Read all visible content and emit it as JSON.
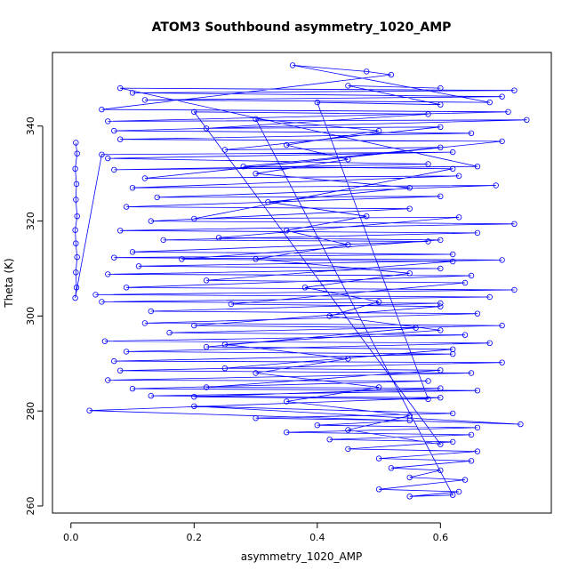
{
  "chart_data": {
    "type": "line",
    "title": "ATOM3 Southbound asymmetry_1020_AMP",
    "xlabel": "asymmetry_1020_AMP",
    "ylabel": "Theta (K)",
    "xlim": [
      -0.03,
      0.78
    ],
    "ylim": [
      258.5,
      355.5
    ],
    "xticks": [
      0.0,
      0.2,
      0.4,
      0.6
    ],
    "xtick_labels": [
      "0.0",
      "0.2",
      "0.4",
      "0.6"
    ],
    "yticks": [
      260,
      280,
      300,
      320,
      340
    ],
    "ytick_labels": [
      "260",
      "280",
      "300",
      "320",
      "340"
    ],
    "grid": false,
    "legend": "none",
    "marker": "open-circle",
    "series_color": "#0000ff",
    "series": [
      {
        "points": [
          [
            0.008,
            336.5
          ],
          [
            0.01,
            334.2
          ],
          [
            0.007,
            331.0
          ],
          [
            0.009,
            327.8
          ],
          [
            0.008,
            324.5
          ],
          [
            0.01,
            321.0
          ],
          [
            0.007,
            318.1
          ],
          [
            0.008,
            315.3
          ],
          [
            0.01,
            312.4
          ],
          [
            0.008,
            309.2
          ],
          [
            0.009,
            306.0
          ],
          [
            0.007,
            303.8
          ],
          [
            0.05,
            334.0
          ],
          [
            0.62,
            334.5
          ],
          [
            0.06,
            333.2
          ],
          [
            0.58,
            332.0
          ],
          [
            0.07,
            330.8
          ],
          [
            0.66,
            331.5
          ],
          [
            0.08,
            348.0
          ],
          [
            0.72,
            347.5
          ],
          [
            0.1,
            347.0
          ],
          [
            0.7,
            346.2
          ],
          [
            0.12,
            345.5
          ],
          [
            0.68,
            345.0
          ],
          [
            0.36,
            352.8
          ],
          [
            0.48,
            351.5
          ],
          [
            0.52,
            350.8
          ],
          [
            0.05,
            343.5
          ],
          [
            0.71,
            343.0
          ],
          [
            0.06,
            341.0
          ],
          [
            0.74,
            341.3
          ],
          [
            0.07,
            339.0
          ],
          [
            0.65,
            338.5
          ],
          [
            0.08,
            337.2
          ],
          [
            0.7,
            336.8
          ],
          [
            0.12,
            329.0
          ],
          [
            0.63,
            329.5
          ],
          [
            0.1,
            327.0
          ],
          [
            0.69,
            327.5
          ],
          [
            0.14,
            325.0
          ],
          [
            0.6,
            325.2
          ],
          [
            0.09,
            323.0
          ],
          [
            0.55,
            322.6
          ],
          [
            0.13,
            320.0
          ],
          [
            0.72,
            319.4
          ],
          [
            0.08,
            318.0
          ],
          [
            0.66,
            317.5
          ],
          [
            0.15,
            316.0
          ],
          [
            0.58,
            315.7
          ],
          [
            0.1,
            313.5
          ],
          [
            0.62,
            313.0
          ],
          [
            0.07,
            312.3
          ],
          [
            0.7,
            311.8
          ],
          [
            0.11,
            310.5
          ],
          [
            0.6,
            310.0
          ],
          [
            0.06,
            308.8
          ],
          [
            0.65,
            308.5
          ],
          [
            0.09,
            306.0
          ],
          [
            0.72,
            305.5
          ],
          [
            0.04,
            304.5
          ],
          [
            0.68,
            304.0
          ],
          [
            0.05,
            303.0
          ],
          [
            0.6,
            302.7
          ],
          [
            0.13,
            301.0
          ],
          [
            0.66,
            300.5
          ],
          [
            0.12,
            298.5
          ],
          [
            0.7,
            298.0
          ],
          [
            0.16,
            296.5
          ],
          [
            0.64,
            296.0
          ],
          [
            0.055,
            294.7
          ],
          [
            0.68,
            294.3
          ],
          [
            0.09,
            292.5
          ],
          [
            0.62,
            292.0
          ],
          [
            0.07,
            290.5
          ],
          [
            0.7,
            290.2
          ],
          [
            0.08,
            288.5
          ],
          [
            0.65,
            288.0
          ],
          [
            0.06,
            286.5
          ],
          [
            0.58,
            286.3
          ],
          [
            0.1,
            284.7
          ],
          [
            0.66,
            284.3
          ],
          [
            0.13,
            283.2
          ],
          [
            0.6,
            282.8
          ],
          [
            0.03,
            280.1
          ],
          [
            0.73,
            277.2
          ],
          [
            0.2,
            281.0
          ],
          [
            0.62,
            279.5
          ],
          [
            0.3,
            278.5
          ],
          [
            0.55,
            278.0
          ],
          [
            0.4,
            277.0
          ],
          [
            0.66,
            276.5
          ],
          [
            0.35,
            275.5
          ],
          [
            0.65,
            275.0
          ],
          [
            0.42,
            274.0
          ],
          [
            0.62,
            273.5
          ],
          [
            0.45,
            272.0
          ],
          [
            0.66,
            271.5
          ],
          [
            0.5,
            270.0
          ],
          [
            0.65,
            269.5
          ],
          [
            0.52,
            268.0
          ],
          [
            0.6,
            267.5
          ],
          [
            0.55,
            266.0
          ],
          [
            0.64,
            265.5
          ],
          [
            0.5,
            263.5
          ],
          [
            0.63,
            263.0
          ],
          [
            0.55,
            262.0
          ],
          [
            0.62,
            262.3
          ],
          [
            0.3,
            341.5
          ],
          [
            0.5,
            339.0
          ],
          [
            0.35,
            336.0
          ],
          [
            0.45,
            333.0
          ],
          [
            0.3,
            330.0
          ],
          [
            0.55,
            327.0
          ],
          [
            0.32,
            324.0
          ],
          [
            0.48,
            321.0
          ],
          [
            0.35,
            318.0
          ],
          [
            0.45,
            315.0
          ],
          [
            0.3,
            312.0
          ],
          [
            0.55,
            309.0
          ],
          [
            0.38,
            306.0
          ],
          [
            0.5,
            303.0
          ],
          [
            0.42,
            300.0
          ],
          [
            0.6,
            297.0
          ],
          [
            0.25,
            294.0
          ],
          [
            0.45,
            291.0
          ],
          [
            0.3,
            288.0
          ],
          [
            0.5,
            285.0
          ],
          [
            0.35,
            282.0
          ],
          [
            0.55,
            279.0
          ],
          [
            0.45,
            276.0
          ],
          [
            0.6,
            273.0
          ],
          [
            0.2,
            343.0
          ],
          [
            0.58,
            342.5
          ],
          [
            0.22,
            339.5
          ],
          [
            0.6,
            339.8
          ],
          [
            0.25,
            335.0
          ],
          [
            0.6,
            335.5
          ],
          [
            0.28,
            331.5
          ],
          [
            0.62,
            331.0
          ],
          [
            0.2,
            320.5
          ],
          [
            0.63,
            320.8
          ],
          [
            0.24,
            316.5
          ],
          [
            0.6,
            316.0
          ],
          [
            0.18,
            312.0
          ],
          [
            0.62,
            311.5
          ],
          [
            0.22,
            307.5
          ],
          [
            0.64,
            307.0
          ],
          [
            0.26,
            302.5
          ],
          [
            0.6,
            302.0
          ],
          [
            0.2,
            298.0
          ],
          [
            0.56,
            297.5
          ],
          [
            0.22,
            293.5
          ],
          [
            0.62,
            293.0
          ],
          [
            0.25,
            289.0
          ],
          [
            0.6,
            288.6
          ],
          [
            0.22,
            285.0
          ],
          [
            0.6,
            284.8
          ],
          [
            0.2,
            283.0
          ],
          [
            0.58,
            282.5
          ],
          [
            0.4,
            345.0
          ],
          [
            0.6,
            344.5
          ],
          [
            0.45,
            348.5
          ],
          [
            0.6,
            348.0
          ]
        ]
      }
    ]
  }
}
